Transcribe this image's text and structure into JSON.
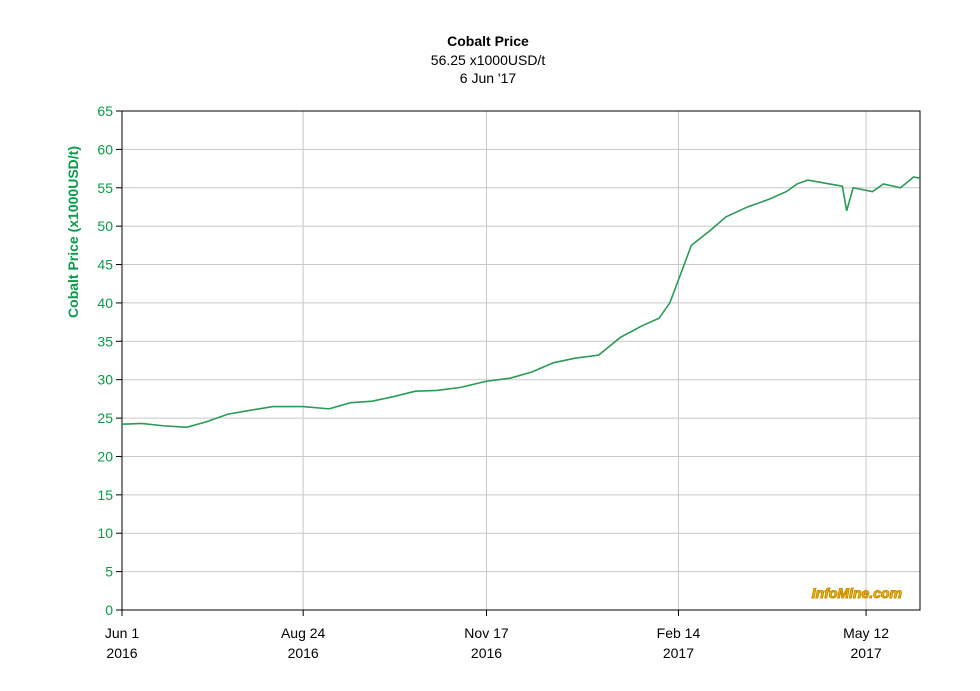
{
  "chart_data": {
    "type": "line",
    "title": "Cobalt Price",
    "subtitle": [
      "56.25 x1000USD/t",
      "6 Jun '17"
    ],
    "y_label": "Cobalt Price (x1000USD/t)",
    "watermark": "InfoMine.com",
    "grid": true,
    "xlim": [
      "2016-06-01",
      "2017-06-06"
    ],
    "xticks": [
      {
        "value": "2016-06-01",
        "label": [
          "Jun 1",
          "2016"
        ]
      },
      {
        "value": "2016-08-24",
        "label": [
          "Aug 24",
          "2016"
        ]
      },
      {
        "value": "2016-11-17",
        "label": [
          "Nov 17",
          "2016"
        ]
      },
      {
        "value": "2017-02-14",
        "label": [
          "Feb 14",
          "2017"
        ]
      },
      {
        "value": "2017-05-12",
        "label": [
          "May 12",
          "2017"
        ]
      }
    ],
    "ylim": [
      0,
      65
    ],
    "yticks": [
      0,
      5,
      10,
      15,
      20,
      25,
      30,
      35,
      40,
      45,
      50,
      55,
      60,
      65
    ],
    "x": [
      "2016-06-01",
      "2016-06-10",
      "2016-06-20",
      "2016-07-01",
      "2016-07-10",
      "2016-07-20",
      "2016-07-30",
      "2016-08-10",
      "2016-08-24",
      "2016-09-05",
      "2016-09-15",
      "2016-09-25",
      "2016-10-05",
      "2016-10-15",
      "2016-10-25",
      "2016-11-05",
      "2016-11-17",
      "2016-11-28",
      "2016-12-08",
      "2016-12-18",
      "2016-12-28",
      "2017-01-08",
      "2017-01-18",
      "2017-01-28",
      "2017-02-05",
      "2017-02-10",
      "2017-02-14",
      "2017-02-20",
      "2017-03-01",
      "2017-03-08",
      "2017-03-18",
      "2017-03-28",
      "2017-04-05",
      "2017-04-10",
      "2017-04-15",
      "2017-04-25",
      "2017-05-01",
      "2017-05-03",
      "2017-05-06",
      "2017-05-15",
      "2017-05-20",
      "2017-05-28",
      "2017-06-03",
      "2017-06-06"
    ],
    "series": [
      {
        "name": "Cobalt Price",
        "color": "#2a9a55",
        "values": [
          24.2,
          24.3,
          24.0,
          23.8,
          24.5,
          25.5,
          26.0,
          26.5,
          26.5,
          26.2,
          27.0,
          27.2,
          27.8,
          28.5,
          28.6,
          29.0,
          29.8,
          30.2,
          31.0,
          32.2,
          32.8,
          33.2,
          35.5,
          37.0,
          38.0,
          40.0,
          43.0,
          47.5,
          49.5,
          51.2,
          52.5,
          53.5,
          54.5,
          55.5,
          56.0,
          55.5,
          55.2,
          52.0,
          55.0,
          54.5,
          55.5,
          55.0,
          56.4,
          56.25
        ]
      }
    ]
  }
}
